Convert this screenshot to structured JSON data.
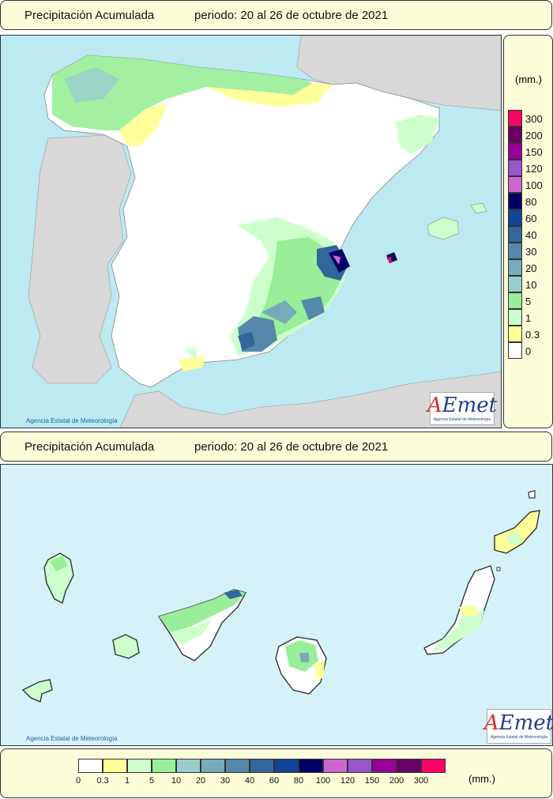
{
  "panels": [
    {
      "title": "Precipitación Acumulada",
      "period": "periodo: 20 al 26 de octubre de 2021"
    },
    {
      "title": "Precipitación Acumulada",
      "period": "periodo: 20 al 26 de octubre de 2021"
    }
  ],
  "legend": {
    "unit": "(mm.)",
    "classes": [
      {
        "label": "0",
        "color": "#ffffff"
      },
      {
        "label": "0.3",
        "color": "#ffff99"
      },
      {
        "label": "1",
        "color": "#ccffcc"
      },
      {
        "label": "5",
        "color": "#99ee99"
      },
      {
        "label": "10",
        "color": "#99cccc"
      },
      {
        "label": "20",
        "color": "#77aabb"
      },
      {
        "label": "30",
        "color": "#5588aa"
      },
      {
        "label": "40",
        "color": "#336699"
      },
      {
        "label": "60",
        "color": "#114499"
      },
      {
        "label": "80",
        "color": "#000066"
      },
      {
        "label": "100",
        "color": "#cc66cc"
      },
      {
        "label": "120",
        "color": "#9955cc"
      },
      {
        "label": "150",
        "color": "#990099"
      },
      {
        "label": "200",
        "color": "#660066"
      },
      {
        "label": "300",
        "color": "#ff0066"
      }
    ]
  },
  "credit": "Agencia Estatal de Meteorología",
  "logo": {
    "text_a": "A",
    "text_rest": "Emet",
    "sub": "Agencia Estatal de Meteorología"
  },
  "colors": {
    "sea": "#bde9f0",
    "land_other": "#d8d8d8",
    "panel_bg": "#fdfcd8"
  }
}
